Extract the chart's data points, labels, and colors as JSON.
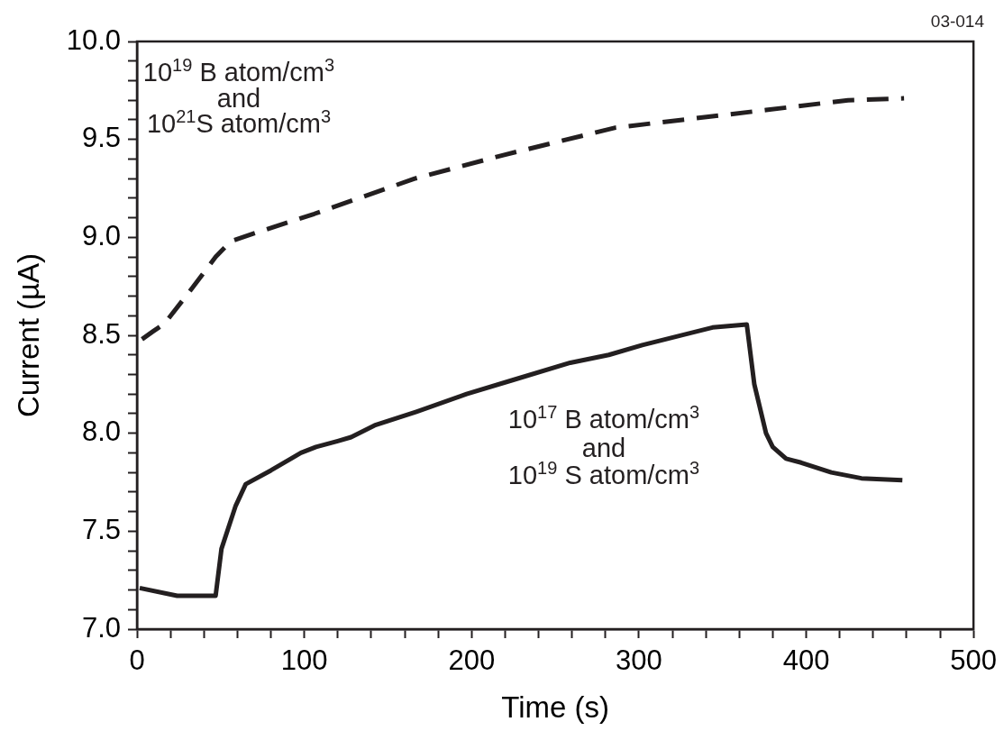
{
  "chart_data": {
    "type": "line",
    "xlabel": "Time (s)",
    "ylabel": "Current (µA)",
    "xlim": [
      0,
      500
    ],
    "ylim": [
      7,
      10
    ],
    "xticks": [
      0,
      {
        "value": 20,
        "label": null
      },
      {
        "value": 40,
        "label": null
      },
      {
        "value": 60,
        "label": null
      },
      {
        "value": 80,
        "label": null
      },
      100,
      {
        "value": 120,
        "label": null
      },
      {
        "value": 140,
        "label": null
      },
      {
        "value": 160,
        "label": null
      },
      {
        "value": 180,
        "label": null
      },
      200,
      {
        "value": 220,
        "label": null
      },
      {
        "value": 240,
        "label": null
      },
      {
        "value": 260,
        "label": null
      },
      {
        "value": 280,
        "label": null
      },
      300,
      {
        "value": 320,
        "label": null
      },
      {
        "value": 340,
        "label": null
      },
      {
        "value": 360,
        "label": null
      },
      {
        "value": 380,
        "label": null
      },
      400,
      {
        "value": 420,
        "label": null
      },
      {
        "value": 440,
        "label": null
      },
      {
        "value": 460,
        "label": null
      },
      {
        "value": 480,
        "label": null
      },
      500
    ],
    "yticks": [
      {
        "value": 7,
        "label": "7.0"
      },
      {
        "value": 7.1,
        "label": null
      },
      {
        "value": 7.2,
        "label": null
      },
      {
        "value": 7.3,
        "label": null
      },
      {
        "value": 7.4,
        "label": null
      },
      {
        "value": 7.5,
        "label": "7.5"
      },
      {
        "value": 7.6,
        "label": null
      },
      {
        "value": 7.7,
        "label": null
      },
      {
        "value": 7.8,
        "label": null
      },
      {
        "value": 7.9,
        "label": null
      },
      {
        "value": 8,
        "label": "8.0"
      },
      {
        "value": 8.1,
        "label": null
      },
      {
        "value": 8.2,
        "label": null
      },
      {
        "value": 8.3,
        "label": null
      },
      {
        "value": 8.4,
        "label": null
      },
      {
        "value": 8.5,
        "label": "8.5"
      },
      {
        "value": 8.6,
        "label": null
      },
      {
        "value": 8.7,
        "label": null
      },
      {
        "value": 8.8,
        "label": null
      },
      {
        "value": 8.9,
        "label": null
      },
      {
        "value": 9,
        "label": "9.0"
      },
      {
        "value": 9.1,
        "label": null
      },
      {
        "value": 9.2,
        "label": null
      },
      {
        "value": 9.3,
        "label": null
      },
      {
        "value": 9.4,
        "label": null
      },
      {
        "value": 9.5,
        "label": "9.5"
      },
      {
        "value": 9.6,
        "label": null
      },
      {
        "value": 9.7,
        "label": null
      },
      {
        "value": 9.8,
        "label": null
      },
      {
        "value": 9.9,
        "label": null
      },
      {
        "value": 10,
        "label": "10.0"
      }
    ],
    "grid": false,
    "legend": false,
    "marker": "none",
    "series": [
      {
        "color": "#231f20",
        "line_style": "dashed",
        "x": [
          3,
          9.6,
          16.5,
          32,
          47,
          56,
          70,
          106,
          166,
          219,
          286,
          326,
          376,
          425,
          458.5
        ],
        "values": [
          8.48,
          8.52,
          8.56,
          8.73,
          8.9,
          8.98,
          9.02,
          9.12,
          9.3,
          9.42,
          9.56,
          9.6,
          9.65,
          9.7,
          9.71
        ]
      },
      {
        "color": "#231f20",
        "line_style": "solid",
        "x": [
          1.6,
          24,
          47,
          50.5,
          59,
          65,
          80,
          98,
          107,
          120,
          128,
          142,
          167,
          197,
          224,
          259,
          282,
          302,
          316,
          344,
          364.5,
          369,
          376,
          380,
          388,
          397,
          415,
          433,
          457.5
        ],
        "values": [
          7.21,
          7.17,
          7.17,
          7.41,
          7.63,
          7.74,
          7.81,
          7.9,
          7.93,
          7.96,
          7.98,
          8.04,
          8.11,
          8.2,
          8.27,
          8.36,
          8.4,
          8.45,
          8.48,
          8.54,
          8.555,
          8.25,
          8,
          7.93,
          7.87,
          7.85,
          7.8,
          7.77,
          7.76
        ]
      }
    ],
    "annotations": [
      "10$^{19}$ B atom/cm$^{3}$",
      "and",
      "10$^{21}$S atom/cm$^{3}$",
      "10$^{17}$ B atom/cm$^{3}$",
      "and",
      "10$^{19}$ S atom/cm$^{3}$",
      "03-014"
    ]
  }
}
